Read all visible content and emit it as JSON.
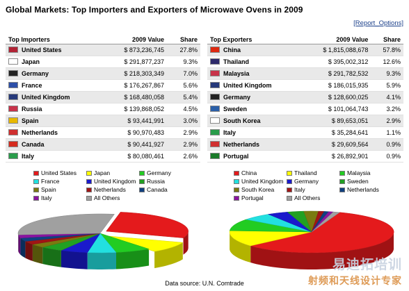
{
  "title": "Global Markets: Top Importers and Exporters of Microwave Ovens in 2009",
  "report_options": "[Report_Options]",
  "source": "Data source: U.N. Comtrade",
  "watermark": {
    "line1": "易迪拓培训",
    "line2": "射频和天线设计专家"
  },
  "importers": {
    "headers": [
      "Top Importers",
      "2009 Value",
      "Share"
    ],
    "rows": [
      {
        "country": "United States",
        "value": "$ 873,236,745",
        "share": "27.8%"
      },
      {
        "country": "Japan",
        "value": "$ 291,877,237",
        "share": "9.3%"
      },
      {
        "country": "Germany",
        "value": "$ 218,303,349",
        "share": "7.0%"
      },
      {
        "country": "France",
        "value": "$ 176,267,867",
        "share": "5.6%"
      },
      {
        "country": "United Kingdom",
        "value": "$ 168,480,058",
        "share": "5.4%"
      },
      {
        "country": "Russia",
        "value": "$ 139,868,052",
        "share": "4.5%"
      },
      {
        "country": "Spain",
        "value": "$ 93,441,991",
        "share": "3.0%"
      },
      {
        "country": "Netherlands",
        "value": "$ 90,970,483",
        "share": "2.9%"
      },
      {
        "country": "Canada",
        "value": "$ 90,441,927",
        "share": "2.9%"
      },
      {
        "country": "Italy",
        "value": "$ 80,080,461",
        "share": "2.6%"
      }
    ],
    "flag_colors": [
      "#b22234",
      "#ffffff",
      "#222222",
      "#2d4fa8",
      "#26397a",
      "#c8334a",
      "#e8b800",
      "#d03030",
      "#d52b1e",
      "#2a9d4b"
    ]
  },
  "exporters": {
    "headers": [
      "Top Exporters",
      "2009 Value",
      "Share"
    ],
    "rows": [
      {
        "country": "China",
        "value": "$ 1,815,088,678",
        "share": "57.8%"
      },
      {
        "country": "Thailand",
        "value": "$ 395,002,312",
        "share": "12.6%"
      },
      {
        "country": "Malaysia",
        "value": "$ 291,782,532",
        "share": "9.3%"
      },
      {
        "country": "United Kingdom",
        "value": "$ 186,015,935",
        "share": "5.9%"
      },
      {
        "country": "Germany",
        "value": "$ 128,600,025",
        "share": "4.1%"
      },
      {
        "country": "Sweden",
        "value": "$ 101,064,743",
        "share": "3.2%"
      },
      {
        "country": "South Korea",
        "value": "$ 89,653,051",
        "share": "2.9%"
      },
      {
        "country": "Italy",
        "value": "$ 35,284,641",
        "share": "1.1%"
      },
      {
        "country": "Netherlands",
        "value": "$ 29,609,564",
        "share": "0.9%"
      },
      {
        "country": "Portugal",
        "value": "$ 26,892,901",
        "share": "0.9%"
      }
    ],
    "flag_colors": [
      "#de2910",
      "#2d2a6a",
      "#c8334a",
      "#26397a",
      "#222222",
      "#2a5fa8",
      "#ffffff",
      "#2a9d4b",
      "#d03030",
      "#1a7a2a"
    ]
  },
  "chart_data": [
    {
      "type": "pie",
      "title": "",
      "legend_placement": "top",
      "categories": [
        "United States",
        "Japan",
        "Germany",
        "France",
        "United Kingdom",
        "Russia",
        "Spain",
        "Netherlands",
        "Canada",
        "Italy",
        "All Others"
      ],
      "values": [
        27.8,
        9.3,
        7.0,
        5.6,
        5.4,
        4.5,
        3.0,
        2.9,
        2.9,
        2.6,
        29.0
      ],
      "colors": [
        "#e41a1c",
        "#ffff00",
        "#22cc22",
        "#22e0e0",
        "#1a1acc",
        "#22a022",
        "#7a7a10",
        "#a01515",
        "#104080",
        "#8a14a0",
        "#a0a0a0"
      ]
    },
    {
      "type": "pie",
      "title": "",
      "legend_placement": "top",
      "categories": [
        "China",
        "Thailand",
        "Malaysia",
        "United Kingdom",
        "Germany",
        "Sweden",
        "South Korea",
        "Italy",
        "Netherlands",
        "Portugal",
        "All Others"
      ],
      "values": [
        57.8,
        12.6,
        9.3,
        5.9,
        4.1,
        3.2,
        2.9,
        1.1,
        0.9,
        0.9,
        1.3
      ],
      "colors": [
        "#e41a1c",
        "#ffff00",
        "#22cc22",
        "#22e0e0",
        "#1a1acc",
        "#22a022",
        "#7a7a10",
        "#a01515",
        "#104080",
        "#8a14a0",
        "#a0a0a0"
      ]
    }
  ]
}
